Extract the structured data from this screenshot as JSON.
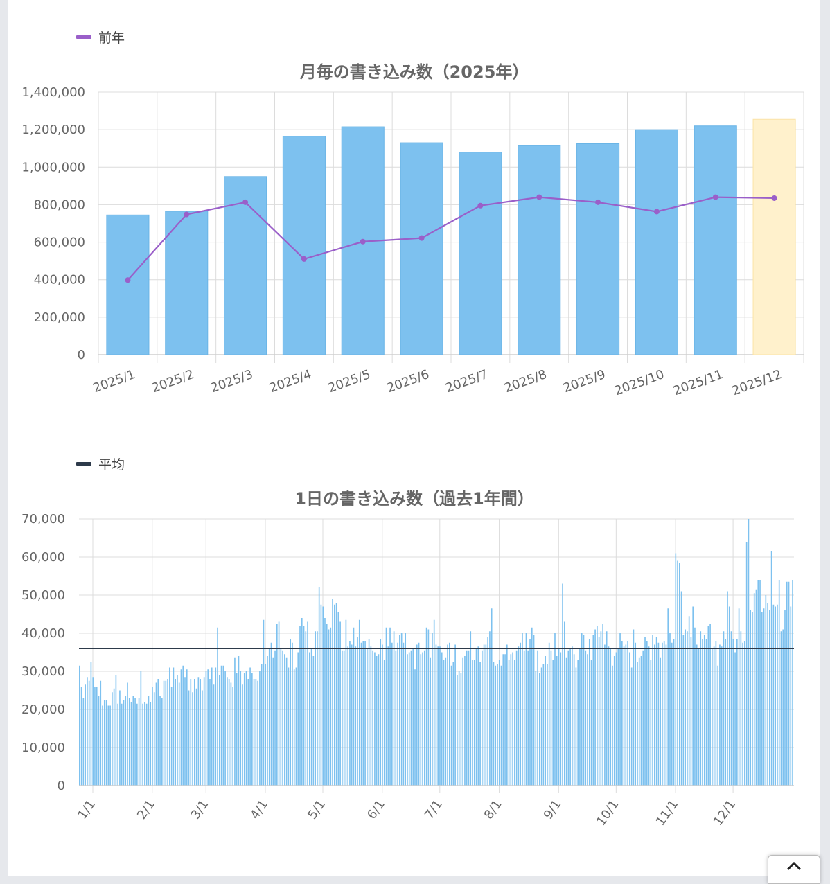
{
  "colors": {
    "bar": "#7dc1ef",
    "bar_current": "#fff1cc",
    "prev_year_line": "#9a5fc9",
    "average_line": "#2d3a4a",
    "grid": "#dcdcdc"
  },
  "monthly": {
    "legend_label": "前年",
    "chart_data": {
      "type": "bar",
      "title": "月毎の書き込み数（2025年）",
      "categories": [
        "2025/1",
        "2025/2",
        "2025/3",
        "2025/4",
        "2025/5",
        "2025/6",
        "2025/7",
        "2025/8",
        "2025/9",
        "2025/10",
        "2025/11",
        "2025/12"
      ],
      "series": [
        {
          "values": [
            745000,
            765000,
            950000,
            1165000,
            1215000,
            1130000,
            1080000,
            1115000,
            1125000,
            1200000,
            1220000,
            1255000
          ]
        },
        {
          "name": "前年",
          "type": "line",
          "values": [
            398000,
            748000,
            813000,
            510000,
            603000,
            622000,
            795000,
            840000,
            813000,
            763000,
            840000,
            835000
          ]
        }
      ],
      "highlight_category": "2025/12",
      "ylim": [
        0,
        1400000
      ],
      "yticks": [
        0,
        200000,
        400000,
        600000,
        800000,
        1000000,
        1200000,
        1400000
      ],
      "ytick_labels": [
        "0",
        "200,000",
        "400,000",
        "600,000",
        "800,000",
        "1,000,000",
        "1,200,000",
        "1,400,000"
      ],
      "grid": true,
      "legend_position": "top-left"
    }
  },
  "daily": {
    "legend_label": "平均",
    "chart_data": {
      "type": "bar",
      "title": "1日の書き込み数（過去1年間）",
      "x_tick_labels": [
        "1/1",
        "2/1",
        "3/1",
        "4/1",
        "5/1",
        "6/1",
        "7/1",
        "8/1",
        "9/1",
        "10/1",
        "11/1",
        "12/1"
      ],
      "month_start_index": [
        0,
        31,
        59,
        90,
        120,
        151,
        181,
        212,
        243,
        273,
        304,
        334
      ],
      "average": 36000,
      "ylim": [
        0,
        70000
      ],
      "yticks": [
        0,
        10000,
        20000,
        30000,
        40000,
        50000,
        60000,
        70000
      ],
      "ytick_labels": [
        "0",
        "10,000",
        "20,000",
        "30,000",
        "40,000",
        "50,000",
        "60,000",
        "70,000"
      ],
      "grid": true,
      "legend_position": "top-left",
      "values": [
        31500,
        26000,
        23000,
        26500,
        28500,
        27500,
        32500,
        28500,
        26000,
        26000,
        23500,
        27500,
        21000,
        22500,
        22500,
        21000,
        21000,
        24500,
        25500,
        29000,
        21500,
        25000,
        21500,
        22500,
        23500,
        27000,
        23000,
        22000,
        23500,
        23000,
        21500,
        23000,
        30000,
        21500,
        22000,
        21500,
        23500,
        22000,
        26000,
        24500,
        27000,
        28000,
        23500,
        23000,
        27500,
        27500,
        28000,
        31000,
        26000,
        31000,
        28000,
        29000,
        27000,
        30500,
        31500,
        28500,
        30500,
        25000,
        28000,
        24500,
        28000,
        25500,
        28500,
        28000,
        25000,
        28500,
        30000,
        30500,
        28000,
        31000,
        26500,
        31000,
        41500,
        29000,
        31500,
        31500,
        30000,
        28500,
        28000,
        27000,
        26000,
        33500,
        29500,
        34000,
        30000,
        26500,
        29500,
        30000,
        28000,
        31000,
        29500,
        28000,
        28000,
        27500,
        30000,
        32000,
        43500,
        32000,
        34000,
        36000,
        37500,
        33500,
        35500,
        42500,
        43000,
        36000,
        35500,
        34500,
        33500,
        31000,
        38500,
        37500,
        30500,
        31000,
        35000,
        42000,
        44000,
        42000,
        40500,
        43000,
        35000,
        36000,
        34000,
        40500,
        40500,
        52000,
        47500,
        47000,
        44000,
        42500,
        41000,
        41500,
        49000,
        47500,
        48000,
        45500,
        43000,
        35500,
        35500,
        43500,
        36500,
        38000,
        37000,
        41500,
        36500,
        39000,
        43500,
        37500,
        38000,
        38000,
        36000,
        38500,
        36500,
        35500,
        35000,
        34000,
        34500,
        38500,
        37000,
        33000,
        41500,
        36500,
        41500,
        37500,
        40500,
        35500,
        37500,
        39500,
        40000,
        37500,
        40000,
        34500,
        35000,
        35500,
        36000,
        30500,
        37000,
        37500,
        34500,
        35000,
        35500,
        41500,
        41000,
        33500,
        40000,
        43500,
        37000,
        36500,
        36500,
        35000,
        33000,
        33500,
        37000,
        37500,
        31500,
        32500,
        37000,
        29000,
        30000,
        29500,
        33500,
        34000,
        35500,
        35500,
        40500,
        33000,
        33000,
        36000,
        36500,
        32500,
        35500,
        37000,
        37000,
        39000,
        40500,
        46500,
        32500,
        31500,
        32000,
        33000,
        31500,
        34500,
        34500,
        37000,
        33000,
        34500,
        35000,
        33000,
        35500,
        36500,
        37500,
        40000,
        35500,
        40000,
        35500,
        38500,
        41500,
        39500,
        30000,
        35500,
        29500,
        31000,
        32000,
        34000,
        32000,
        37500,
        35500,
        33000,
        40000,
        34000,
        36000,
        35000,
        53000,
        43000,
        33500,
        35500,
        36000,
        36500,
        34500,
        31000,
        33000,
        36000,
        40000,
        39500,
        35500,
        34500,
        38500,
        33000,
        39500,
        41000,
        42000,
        39000,
        40500,
        42500,
        37000,
        40500,
        36500,
        36000,
        31500,
        34000,
        35000,
        36000,
        40000,
        38000,
        36500,
        37000,
        38000,
        35000,
        31000,
        41000,
        37500,
        32500,
        33500,
        34000,
        35500,
        39000,
        38000,
        36500,
        33000,
        39500,
        37000,
        39000,
        37500,
        33500,
        37500,
        38000,
        37000,
        46500,
        40000,
        37500,
        38500,
        61000,
        59000,
        58500,
        51000,
        39500,
        41000,
        40500,
        44500,
        39000,
        47000,
        41500,
        37000,
        36000,
        40500,
        38500,
        39500,
        38500,
        42000,
        42500,
        36000,
        36500,
        38000,
        31500,
        37000,
        36500,
        40500,
        38500,
        51000,
        47000,
        40500,
        38500,
        35000,
        38500,
        46500,
        40500,
        37500,
        38000,
        64000,
        70000,
        46000,
        45500,
        50500,
        51500,
        54000,
        54000,
        45500,
        46500,
        50000,
        48000,
        46000,
        61500,
        47500,
        47000,
        47500,
        54000,
        40500,
        41000,
        46000,
        53500,
        53500,
        47000,
        54000
      ]
    }
  }
}
